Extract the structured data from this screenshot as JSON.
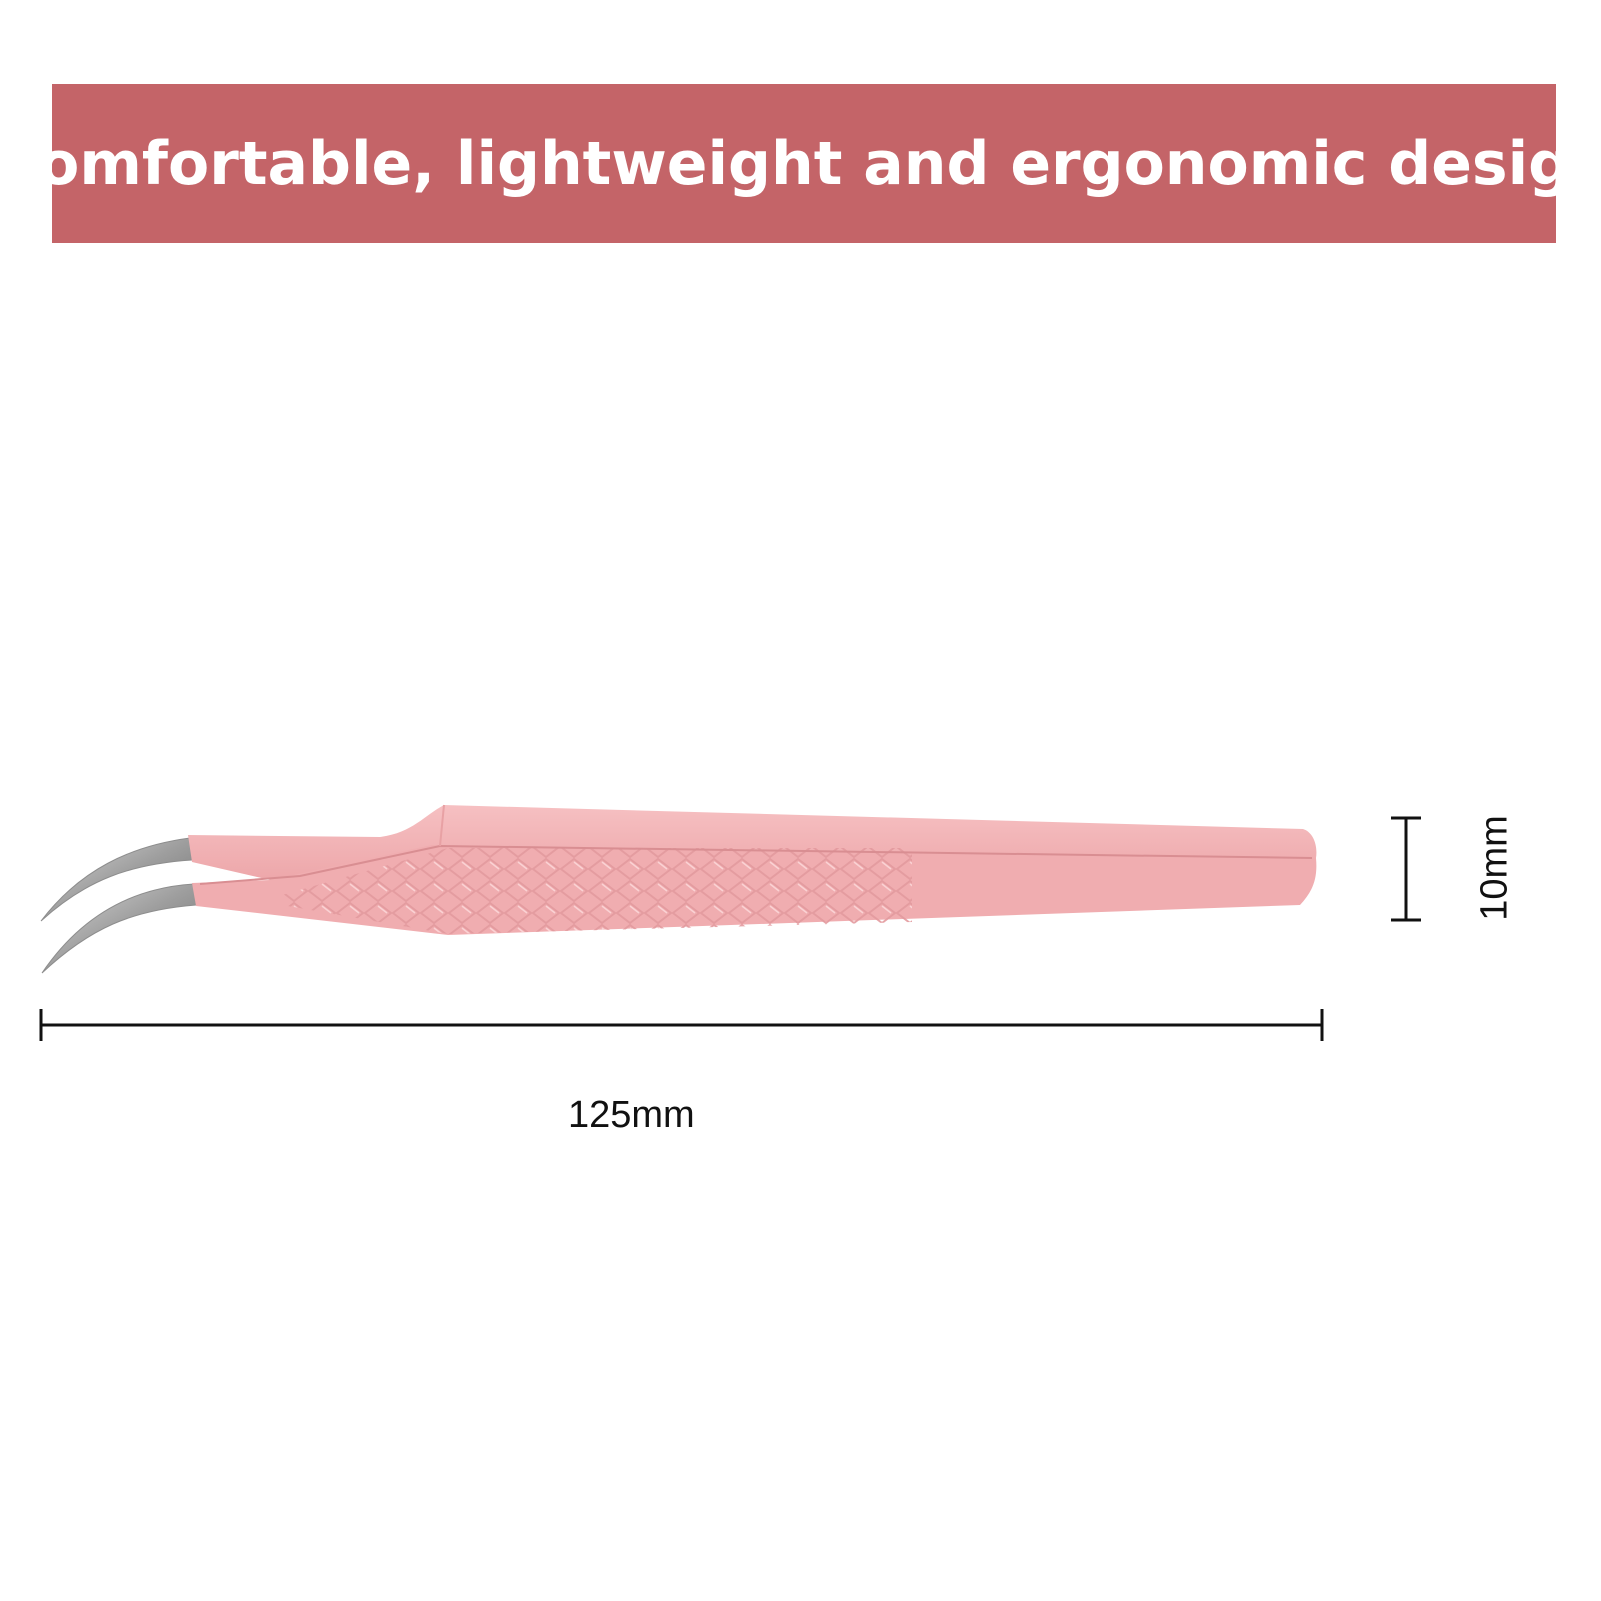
{
  "banner": {
    "title": "Comfortable, lightweight and ergonomic design",
    "background_color": "#c46468",
    "text_color": "#ffffff"
  },
  "product": {
    "icon": "curved-tweezers-icon",
    "handle_color": "#f2b4b6",
    "tip_color": "#b8b8b8",
    "texture": "diamond-grip-pattern"
  },
  "dimensions": {
    "length_label": "125mm",
    "width_label": "10mm",
    "line_color": "#111111"
  }
}
